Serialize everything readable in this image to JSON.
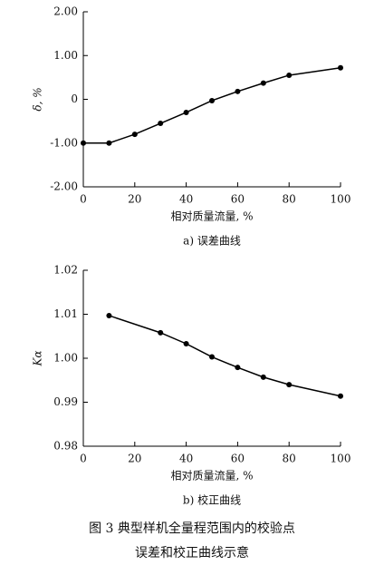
{
  "chart_data": [
    {
      "type": "line",
      "y_label": "δ, %",
      "x_label": "相对质量流量, %",
      "caption": "a) 误差曲线",
      "x": [
        0,
        10,
        20,
        30,
        40,
        50,
        60,
        70,
        80,
        100
      ],
      "series": [
        {
          "color": "#000000",
          "values": [
            -1.0,
            -1.0,
            -0.8,
            -0.55,
            -0.3,
            -0.03,
            0.18,
            0.37,
            0.55,
            0.72
          ]
        }
      ],
      "xlim": [
        0,
        100
      ],
      "xticks": [
        0,
        20,
        40,
        60,
        80,
        100
      ],
      "ylim": [
        -2,
        2
      ],
      "yticks": [
        {
          "value": 2,
          "label": "2.00"
        },
        {
          "value": 1,
          "label": "1.00"
        },
        0,
        {
          "value": -1,
          "label": "-1.00"
        },
        {
          "value": -2,
          "label": "-2.00"
        }
      ]
    },
    {
      "type": "line",
      "y_label": "Kα",
      "x_label": "相对质量流量, %",
      "caption": "b) 校正曲线",
      "x": [
        10,
        30,
        40,
        50,
        60,
        70,
        80,
        100
      ],
      "series": [
        {
          "color": "#000000",
          "values": [
            1.0097,
            1.0058,
            1.0033,
            1.0003,
            0.9979,
            0.9957,
            0.994,
            0.9914
          ]
        }
      ],
      "xlim": [
        0,
        100
      ],
      "xticks": [
        0,
        20,
        40,
        60,
        80,
        100
      ],
      "ylim": [
        0.98,
        1.02
      ],
      "yticks": [
        1.02,
        1.01,
        {
          "value": 1,
          "label": "1.00"
        },
        0.99,
        0.98
      ]
    }
  ],
  "figure_caption": [
    "图 3   典型样机全量程范围内的校验点",
    "误差和校正曲线示意"
  ]
}
